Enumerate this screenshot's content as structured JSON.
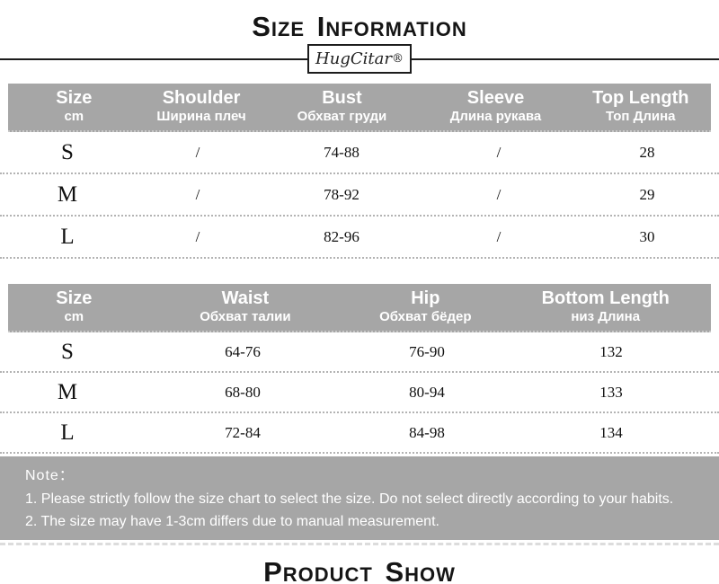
{
  "title": "Size Information",
  "brand": {
    "name": "HugCitar",
    "reg": "®"
  },
  "colors": {
    "header_bg": "#a6a6a6",
    "note_bg": "#a6a6a6"
  },
  "top_table": {
    "headers": [
      {
        "en": "Size",
        "sub": "cm"
      },
      {
        "en": "Shoulder",
        "sub": "Ширина плеч"
      },
      {
        "en": "Bust",
        "sub": "Обхват груди"
      },
      {
        "en": "Sleeve",
        "sub": "Длина рукава"
      },
      {
        "en": "Top Length",
        "sub": "Топ Длина"
      }
    ],
    "rows": [
      [
        "S",
        "/",
        "74-88",
        "/",
        "28"
      ],
      [
        "M",
        "/",
        "78-92",
        "/",
        "29"
      ],
      [
        "L",
        "/",
        "82-96",
        "/",
        "30"
      ]
    ]
  },
  "bottom_table": {
    "headers": [
      {
        "en": "Size",
        "sub": "cm"
      },
      {
        "en": "Waist",
        "sub": "Обхват талии"
      },
      {
        "en": "Hip",
        "sub": "Обхват бёдер"
      },
      {
        "en": "Bottom Length",
        "sub": "низ Длина"
      }
    ],
    "rows": [
      [
        "S",
        "64-76",
        "76-90",
        "132"
      ],
      [
        "M",
        "68-80",
        "80-94",
        "133"
      ],
      [
        "L",
        "72-84",
        "84-98",
        "134"
      ]
    ]
  },
  "note": {
    "title": "Note：",
    "lines": [
      "1. Please strictly follow the size chart to select the size. Do not select directly according to your habits.",
      "2. The size may have 1-3cm differs due to manual measurement."
    ]
  },
  "footer_title": "Product Show"
}
